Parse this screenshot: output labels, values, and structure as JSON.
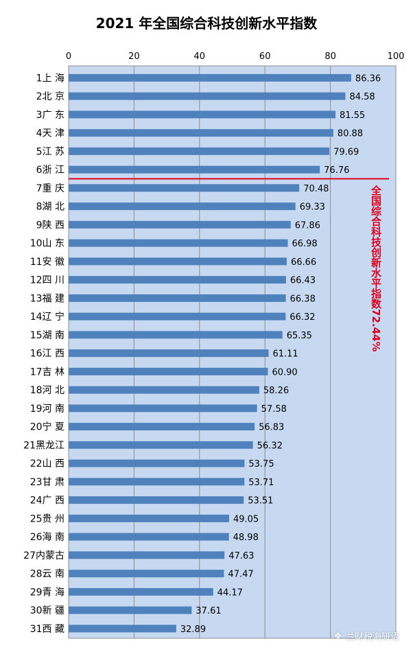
{
  "chart_data": {
    "type": "bar",
    "orientation": "horizontal",
    "title": "2021 年全国综合科技创新水平指数",
    "x_ticks": [
      "0",
      "20",
      "40",
      "60",
      "80",
      "100"
    ],
    "xlim": [
      0,
      100
    ],
    "grid": true,
    "categories": [
      "1上 海",
      "2北 京",
      "3广 东",
      "4天 津",
      "5江 苏",
      "6浙 江",
      "7重 庆",
      "8湖 北",
      "9陕 西",
      "10山 东",
      "11安 徽",
      "12四 川",
      "13福 建",
      "14辽 宁",
      "15湖 南",
      "16江 西",
      "17吉 林",
      "18河 北",
      "19河 南",
      "20宁 夏",
      "21黑龙江",
      "22山 西",
      "23甘 肃",
      "24广 西",
      "25贵 州",
      "26海 南",
      "27内蒙古",
      "28云 南",
      "29青 海",
      "30新 疆",
      "31西 藏"
    ],
    "values": [
      86.36,
      84.58,
      81.55,
      80.88,
      79.69,
      76.76,
      70.48,
      69.33,
      67.86,
      66.98,
      66.66,
      66.43,
      66.38,
      66.32,
      65.35,
      61.11,
      60.9,
      58.26,
      57.58,
      56.83,
      56.32,
      53.75,
      53.71,
      53.51,
      49.05,
      48.98,
      47.63,
      47.47,
      44.17,
      37.61,
      32.89
    ],
    "value_labels": [
      "86.36",
      "84.58",
      "81.55",
      "80.88",
      "79.69",
      "76.76",
      "70.48",
      "69.33",
      "67.86",
      "66.98",
      "66.66",
      "66.43",
      "66.38",
      "66.32",
      "65.35",
      "61.11",
      "60.90",
      "58.26",
      "57.58",
      "56.83",
      "56.32",
      "53.75",
      "53.71",
      "53.51",
      "49.05",
      "48.98",
      "47.63",
      "47.47",
      "44.17",
      "37.61",
      "32.89"
    ],
    "reference_after_rank": 6,
    "reference_annotation": "全国综合科技创新水平指数72.44%",
    "colors": {
      "bar": "#4f81bd",
      "plot_bg": "#c6d9f1",
      "grid": "#8c8c8c",
      "reference": "#e0001b",
      "annotation": "#e0001b"
    }
  },
  "watermark": {
    "icon": "wechat-icon",
    "text": "兰财税海研语"
  }
}
